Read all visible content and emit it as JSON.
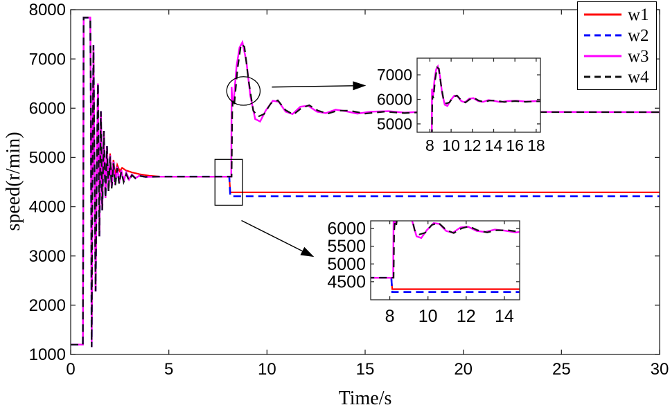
{
  "figure": {
    "background": "#ffffff"
  },
  "axis_labels": {
    "x": "Time/s",
    "y": "speed(r/min)"
  },
  "legend": {
    "items": [
      {
        "label": "w1"
      },
      {
        "label": "w2"
      },
      {
        "label": "w3"
      },
      {
        "label": "w4"
      }
    ]
  },
  "chart_data": {
    "type": "line",
    "title": "",
    "xlabel": "Time/s",
    "ylabel": "speed(r/min)",
    "xlim": [
      0,
      30
    ],
    "ylim": [
      1000,
      8000
    ],
    "xticks": [
      0,
      5,
      10,
      15,
      20,
      25,
      30
    ],
    "yticks": [
      1000,
      2000,
      3000,
      4000,
      5000,
      6000,
      7000,
      8000
    ],
    "grid": false,
    "legend_position": "top-right",
    "series": [
      {
        "name": "w1",
        "color": "#ff0000",
        "style": "solid",
        "width": 2.2,
        "points": [
          [
            0,
            1200
          ],
          [
            0.62,
            1200
          ],
          [
            0.645,
            4500
          ],
          [
            0.66,
            7840
          ],
          [
            1,
            7840
          ],
          [
            1.03,
            6000
          ],
          [
            1.07,
            1150
          ],
          [
            1.11,
            4500
          ],
          [
            1.16,
            7280
          ],
          [
            1.21,
            5000
          ],
          [
            1.27,
            2280
          ],
          [
            1.33,
            4800
          ],
          [
            1.39,
            6500
          ],
          [
            1.46,
            3400
          ],
          [
            1.54,
            5940
          ],
          [
            1.61,
            3930
          ],
          [
            1.69,
            5540
          ],
          [
            1.77,
            4180
          ],
          [
            1.85,
            5230
          ],
          [
            1.93,
            4350
          ],
          [
            2.01,
            5080
          ],
          [
            2.09,
            4520
          ],
          [
            2.18,
            4950
          ],
          [
            2.27,
            4640
          ],
          [
            2.37,
            4850
          ],
          [
            2.5,
            4720
          ],
          [
            2.62,
            4790
          ],
          [
            2.8,
            4740
          ],
          [
            3.1,
            4700
          ],
          [
            3.5,
            4660
          ],
          [
            4,
            4630
          ],
          [
            4.5,
            4612
          ],
          [
            6,
            4610
          ],
          [
            8.08,
            4610
          ],
          [
            8.13,
            4290
          ],
          [
            30,
            4290
          ]
        ]
      },
      {
        "name": "w2",
        "color": "#0000ff",
        "style": "dashed",
        "width": 2.6,
        "points": [
          [
            0,
            1200
          ],
          [
            0.62,
            1200
          ],
          [
            0.645,
            4500
          ],
          [
            0.66,
            7840
          ],
          [
            1,
            7840
          ],
          [
            1.03,
            6000
          ],
          [
            1.07,
            1150
          ],
          [
            1.11,
            4500
          ],
          [
            1.16,
            7280
          ],
          [
            1.21,
            5000
          ],
          [
            1.27,
            2280
          ],
          [
            1.33,
            4800
          ],
          [
            1.39,
            6500
          ],
          [
            1.46,
            3400
          ],
          [
            1.54,
            5940
          ],
          [
            1.61,
            3930
          ],
          [
            1.69,
            5540
          ],
          [
            1.77,
            4180
          ],
          [
            1.85,
            5230
          ],
          [
            1.93,
            4320
          ],
          [
            2.01,
            5040
          ],
          [
            2.09,
            4400
          ],
          [
            2.18,
            4910
          ],
          [
            2.27,
            4450
          ],
          [
            2.37,
            4810
          ],
          [
            2.47,
            4490
          ],
          [
            2.58,
            4740
          ],
          [
            2.7,
            4520
          ],
          [
            2.83,
            4690
          ],
          [
            2.97,
            4550
          ],
          [
            3.12,
            4650
          ],
          [
            3.3,
            4580
          ],
          [
            3.5,
            4630
          ],
          [
            3.8,
            4605
          ],
          [
            4.5,
            4610
          ],
          [
            6,
            4610
          ],
          [
            8.08,
            4610
          ],
          [
            8.13,
            4210
          ],
          [
            30,
            4210
          ]
        ]
      },
      {
        "name": "w3",
        "color": "#ff00ff",
        "style": "solid",
        "width": 2.4,
        "points": [
          [
            0,
            1200
          ],
          [
            0.62,
            1200
          ],
          [
            0.645,
            4500
          ],
          [
            0.66,
            7840
          ],
          [
            1,
            7840
          ],
          [
            1.03,
            6000
          ],
          [
            1.07,
            1150
          ],
          [
            1.11,
            4500
          ],
          [
            1.16,
            7280
          ],
          [
            1.21,
            5000
          ],
          [
            1.27,
            2280
          ],
          [
            1.33,
            4800
          ],
          [
            1.39,
            6500
          ],
          [
            1.46,
            3400
          ],
          [
            1.54,
            5940
          ],
          [
            1.61,
            3930
          ],
          [
            1.69,
            5540
          ],
          [
            1.77,
            4180
          ],
          [
            1.85,
            5230
          ],
          [
            1.93,
            4320
          ],
          [
            2.01,
            5040
          ],
          [
            2.09,
            4400
          ],
          [
            2.18,
            4910
          ],
          [
            2.27,
            4450
          ],
          [
            2.37,
            4810
          ],
          [
            2.47,
            4490
          ],
          [
            2.58,
            4740
          ],
          [
            2.7,
            4520
          ],
          [
            2.83,
            4690
          ],
          [
            2.97,
            4550
          ],
          [
            3.12,
            4650
          ],
          [
            3.3,
            4580
          ],
          [
            3.5,
            4630
          ],
          [
            3.8,
            4605
          ],
          [
            4.5,
            4610
          ],
          [
            6,
            4610
          ],
          [
            8.18,
            4610
          ],
          [
            8.2,
            6430
          ],
          [
            8.24,
            6080
          ],
          [
            8.3,
            6140
          ],
          [
            8.45,
            6850
          ],
          [
            8.6,
            7230
          ],
          [
            8.75,
            7340
          ],
          [
            8.95,
            6950
          ],
          [
            9.15,
            6250
          ],
          [
            9.4,
            5780
          ],
          [
            9.65,
            5730
          ],
          [
            9.95,
            5960
          ],
          [
            10.3,
            6150
          ],
          [
            10.6,
            6130
          ],
          [
            10.95,
            5930
          ],
          [
            11.3,
            5880
          ],
          [
            11.7,
            6030
          ],
          [
            12.1,
            6050
          ],
          [
            12.55,
            5930
          ],
          [
            13,
            5900
          ],
          [
            13.5,
            5970
          ],
          [
            14,
            5940
          ],
          [
            14.6,
            5890
          ],
          [
            15.3,
            5930
          ],
          [
            16.2,
            5940
          ],
          [
            17,
            5910
          ],
          [
            18,
            5930
          ],
          [
            30,
            5920
          ]
        ]
      },
      {
        "name": "w4",
        "color": "#111111",
        "style": "dashed",
        "width": 2.2,
        "points": [
          [
            0,
            1200
          ],
          [
            0.62,
            1200
          ],
          [
            0.645,
            4500
          ],
          [
            0.66,
            7840
          ],
          [
            1,
            7840
          ],
          [
            1.03,
            6000
          ],
          [
            1.07,
            1150
          ],
          [
            1.11,
            4500
          ],
          [
            1.16,
            7280
          ],
          [
            1.21,
            5000
          ],
          [
            1.27,
            2280
          ],
          [
            1.33,
            4800
          ],
          [
            1.39,
            6500
          ],
          [
            1.46,
            3400
          ],
          [
            1.54,
            5940
          ],
          [
            1.61,
            3930
          ],
          [
            1.69,
            5540
          ],
          [
            1.77,
            4180
          ],
          [
            1.85,
            5230
          ],
          [
            1.93,
            4300
          ],
          [
            2.01,
            5020
          ],
          [
            2.09,
            4370
          ],
          [
            2.18,
            4880
          ],
          [
            2.27,
            4420
          ],
          [
            2.37,
            4780
          ],
          [
            2.47,
            4460
          ],
          [
            2.58,
            4710
          ],
          [
            2.7,
            4500
          ],
          [
            2.83,
            4660
          ],
          [
            2.97,
            4530
          ],
          [
            3.12,
            4640
          ],
          [
            3.3,
            4575
          ],
          [
            3.5,
            4625
          ],
          [
            3.8,
            4605
          ],
          [
            4.5,
            4610
          ],
          [
            6,
            4610
          ],
          [
            8.2,
            4610
          ],
          [
            8.23,
            5900
          ],
          [
            8.26,
            6150
          ],
          [
            8.33,
            6050
          ],
          [
            8.5,
            6800
          ],
          [
            8.68,
            7300
          ],
          [
            8.85,
            7250
          ],
          [
            9.05,
            6600
          ],
          [
            9.3,
            5950
          ],
          [
            9.55,
            5830
          ],
          [
            9.85,
            5880
          ],
          [
            10.2,
            6100
          ],
          [
            10.55,
            6160
          ],
          [
            10.95,
            5960
          ],
          [
            11.35,
            5870
          ],
          [
            11.75,
            6000
          ],
          [
            12.15,
            6060
          ],
          [
            12.6,
            5950
          ],
          [
            13.1,
            5890
          ],
          [
            13.6,
            5950
          ],
          [
            14.2,
            5950
          ],
          [
            15,
            5890
          ],
          [
            16,
            5930
          ],
          [
            17,
            5900
          ],
          [
            18,
            5920
          ],
          [
            30,
            5920
          ]
        ]
      }
    ],
    "insets": [
      {
        "name": "upper-zoom",
        "xlim": [
          6.8,
          18.4
        ],
        "ylim": [
          4660,
          7680
        ],
        "xticks": [
          8,
          10,
          12,
          14,
          16,
          18
        ],
        "yticks": [
          5000,
          6000,
          7000
        ]
      },
      {
        "name": "lower-zoom",
        "xlim": [
          7.0,
          14.8
        ],
        "ylim": [
          3990,
          6215
        ],
        "xticks": [
          8,
          10,
          12,
          14
        ],
        "yticks": [
          4500,
          5000,
          5500,
          6000
        ]
      }
    ],
    "annotations": {
      "ellipse": {
        "cx": 8.8,
        "cy": 6350,
        "rx": 0.85,
        "ry": 290
      },
      "arrow_to_upper_inset": {
        "from": [
          10.25,
          6430
        ],
        "to": [
          15.05,
          6460
        ]
      },
      "rect": {
        "x0": 7.35,
        "x1": 8.75,
        "y0": 4030,
        "y1": 4960
      },
      "arrow_to_lower_inset": {
        "from": [
          8.7,
          3720
        ],
        "to": [
          12.4,
          2980
        ]
      }
    },
    "colors": {
      "axis": "#262626",
      "tick_label": "#000000"
    }
  }
}
